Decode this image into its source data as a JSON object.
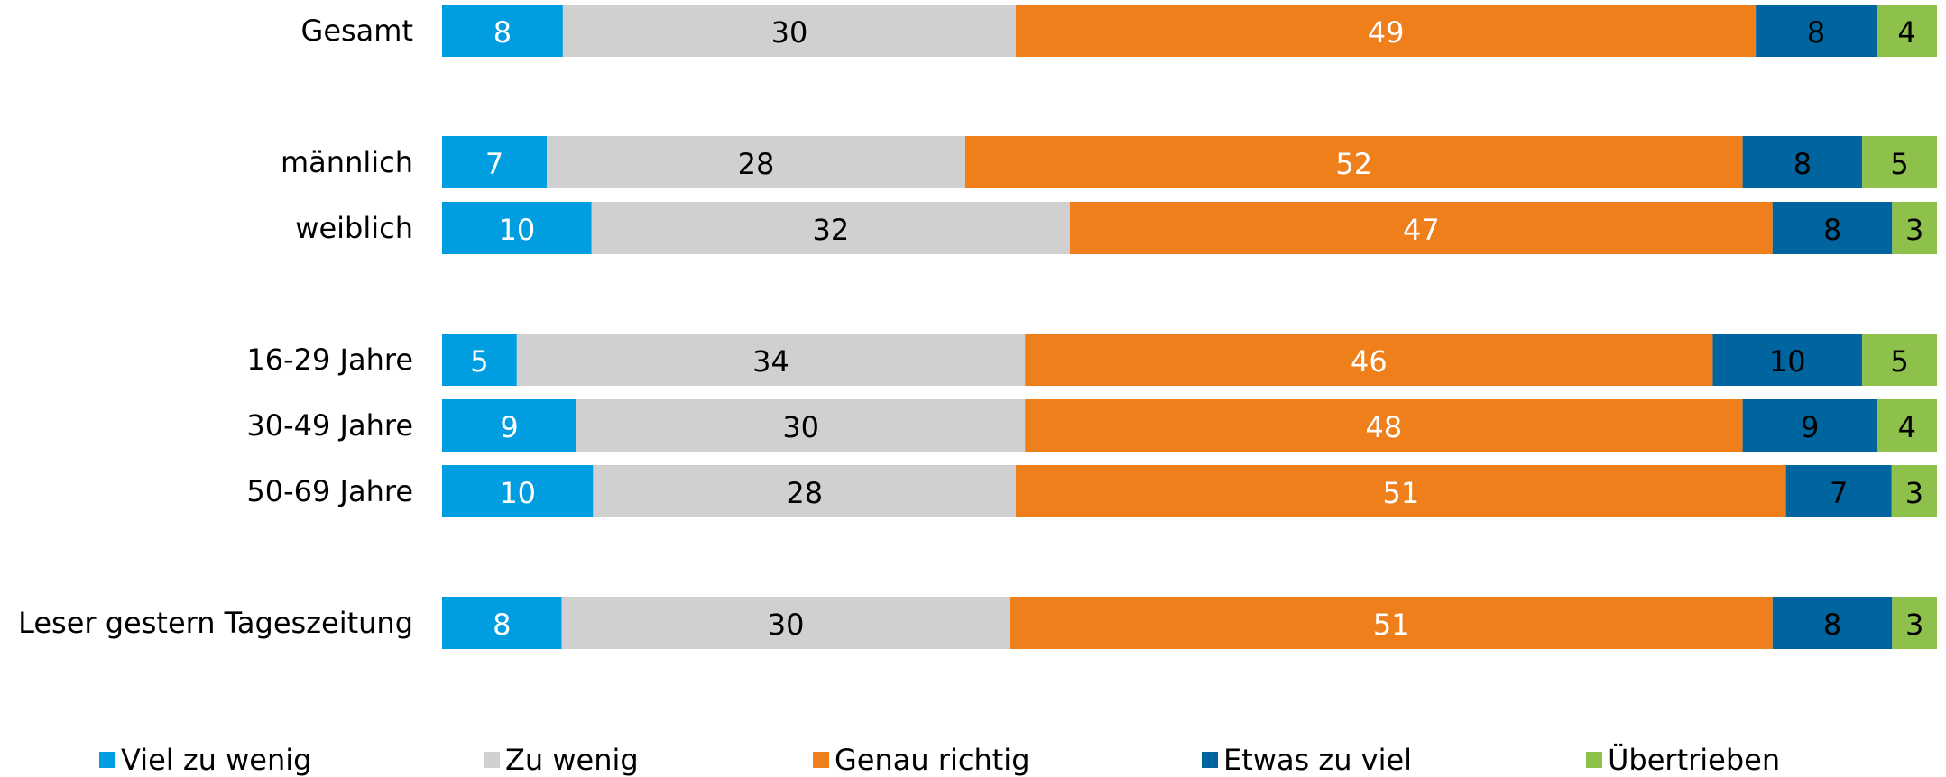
{
  "chart_data": {
    "type": "stacked_bar_horizontal",
    "categories": [
      "Gesamt",
      null,
      "männlich",
      "weiblich",
      null,
      "16-29 Jahre",
      "30-49 Jahre",
      "50-69 Jahre",
      null,
      "Leser gestern Tageszeitung"
    ],
    "series": [
      {
        "name": "Viel zu wenig",
        "color": "#009ee0",
        "values": [
          8,
          null,
          7,
          10,
          null,
          5,
          9,
          10,
          null,
          8
        ]
      },
      {
        "name": "Zu wenig",
        "color": "#d0d0d0",
        "values": [
          30,
          null,
          28,
          32,
          null,
          34,
          30,
          28,
          null,
          30
        ]
      },
      {
        "name": "Genau richtig",
        "color": "#ee7f1b",
        "values": [
          49,
          null,
          52,
          47,
          null,
          46,
          48,
          51,
          null,
          51
        ]
      },
      {
        "name": "Etwas zu viel",
        "color": "#00649f",
        "values": [
          8,
          null,
          8,
          8,
          null,
          10,
          9,
          7,
          null,
          8
        ]
      },
      {
        "name": "Übertrieben",
        "color": "#8dc14b",
        "values": [
          4,
          null,
          5,
          3,
          null,
          5,
          4,
          3,
          null,
          3
        ]
      }
    ],
    "legend": "bottom"
  }
}
